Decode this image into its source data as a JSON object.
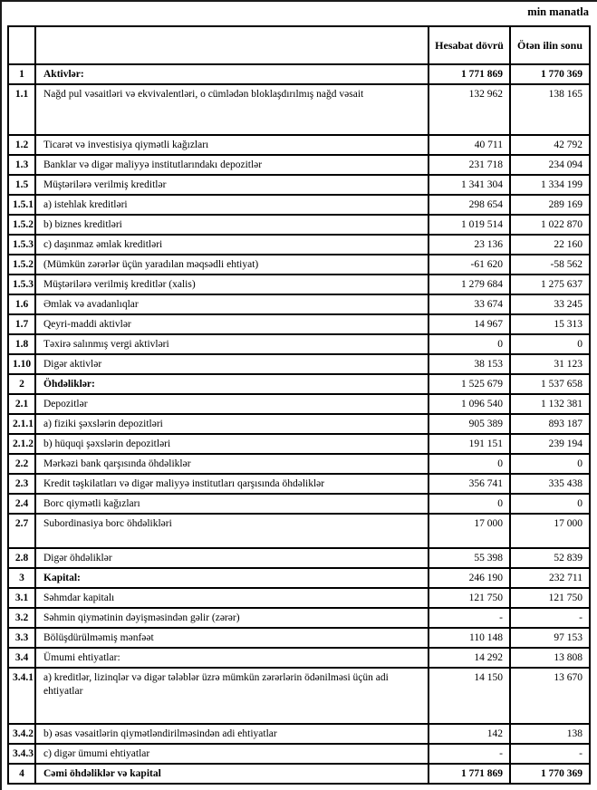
{
  "note": "min manatla",
  "table": {
    "headers": {
      "col_no": "",
      "col_desc": "",
      "col_current": "Hesabat dövrü",
      "col_prior": "Ötən ilin sonu"
    },
    "rows": [
      {
        "no": "1",
        "label": "Aktivlər:",
        "current": "1 771 869",
        "prior": "1 770 369",
        "bold": true,
        "values_bold": true
      },
      {
        "no": "1.1",
        "label": "Nağd pul vəsaitləri və  ekvivalentləri, o cümlədən bloklaşdırılmış nağd vəsait",
        "current": "132 962",
        "prior": "138 165",
        "bold": false,
        "values_bold": false
      },
      {
        "no": "1.2",
        "label": "Ticarət və investisiya qiymətli kağızları",
        "current": "40 711",
        "prior": "42 792",
        "bold": false,
        "values_bold": false
      },
      {
        "no": "1.3",
        "label": "Banklar və digər maliyyə institutlarındakı depozitlər",
        "current": "231 718",
        "prior": "234 094",
        "bold": false,
        "values_bold": false
      },
      {
        "no": "1.5",
        "label": "Müştərilərə verilmiş kreditlər",
        "current": "1 341 304",
        "prior": "1 334 199",
        "bold": false,
        "values_bold": false
      },
      {
        "no": "1.5.1",
        "label": "a) istehlak kreditləri",
        "current": "298 654",
        "prior": "289 169",
        "bold": false,
        "values_bold": false
      },
      {
        "no": "1.5.2",
        "label": "b) biznes kreditləri",
        "current": "1 019 514",
        "prior": "1 022 870",
        "bold": false,
        "values_bold": false
      },
      {
        "no": "1.5.3",
        "label": "c) daşınmaz əmlak kreditləri",
        "current": "23 136",
        "prior": "22 160",
        "bold": false,
        "values_bold": false
      },
      {
        "no": "1.5.2",
        "label": "(Mümkün zərərlər üçün yaradılan məqsədli ehtiyat)",
        "current": "-61 620",
        "prior": "-58 562",
        "bold": false,
        "values_bold": false
      },
      {
        "no": "1.5.3",
        "label": "Müştərilərə verilmiş kreditlər (xalis)",
        "current": "1 279 684",
        "prior": "1 275 637",
        "bold": false,
        "values_bold": false
      },
      {
        "no": "1.6",
        "label": "Əmlak və avadanlıqlar",
        "current": "33 674",
        "prior": "33 245",
        "bold": false,
        "values_bold": false
      },
      {
        "no": "1.7",
        "label": "Qeyri-maddi aktivlər",
        "current": "14 967",
        "prior": "15 313",
        "bold": false,
        "values_bold": false
      },
      {
        "no": "1.8",
        "label": "Təxirə salınmış vergi aktivləri",
        "current": "0",
        "prior": "0",
        "bold": false,
        "values_bold": false
      },
      {
        "no": "1.10",
        "label": "Digər aktivlər",
        "current": "38 153",
        "prior": "31 123",
        "bold": false,
        "values_bold": false
      },
      {
        "no": "2",
        "label": "Öhdəliklər:",
        "current": "1 525 679",
        "prior": "1 537 658",
        "bold": true,
        "values_bold": false
      },
      {
        "no": "2.1",
        "label": "Depozitlər",
        "current": "1 096 540",
        "prior": "1 132 381",
        "bold": false,
        "values_bold": false
      },
      {
        "no": "2.1.1",
        "label": "a) fiziki şəxslərin depozitləri",
        "current": "905 389",
        "prior": "893 187",
        "bold": false,
        "values_bold": false
      },
      {
        "no": "2.1.2",
        "label": "b) hüquqi şəxslərin depozitləri",
        "current": "191 151",
        "prior": "239 194",
        "bold": false,
        "values_bold": false
      },
      {
        "no": "2.2",
        "label": "Mərkəzi bank qarşısında öhdəliklər",
        "current": "0",
        "prior": "0",
        "bold": false,
        "values_bold": false
      },
      {
        "no": "2.3",
        "label": "Kredit təşkilatları və digər maliyyə institutları qarşısında öhdəliklər",
        "current": "356 741",
        "prior": "335 438",
        "bold": false,
        "values_bold": false
      },
      {
        "no": "2.4",
        "label": "Borc qiymətli kağızları",
        "current": "0",
        "prior": "0",
        "bold": false,
        "values_bold": false
      },
      {
        "no": "2.7",
        "label": "Subordinasiya borc öhdəlikləri",
        "current": "17 000",
        "prior": "17 000",
        "bold": false,
        "values_bold": false
      },
      {
        "no": "2.8",
        "label": "Digər öhdəliklər",
        "current": "55 398",
        "prior": "52 839",
        "bold": false,
        "values_bold": false
      },
      {
        "no": "3",
        "label": "Kapital:",
        "current": "246 190",
        "prior": "232 711",
        "bold": true,
        "values_bold": false
      },
      {
        "no": "3.1",
        "label": "Səhmdar kapitalı",
        "current": "121 750",
        "prior": "121 750",
        "bold": false,
        "values_bold": false
      },
      {
        "no": "3.2",
        "label": "Səhmin qiymətinin dəyişməsindən gəlir (zərər)",
        "current": "-",
        "prior": "-",
        "bold": false,
        "values_bold": false
      },
      {
        "no": "3.3",
        "label": "Bölüşdürülməmiş mənfəət",
        "current": "110 148",
        "prior": "97 153",
        "bold": false,
        "values_bold": false
      },
      {
        "no": "3.4",
        "label": "Ümumi ehtiyatlar:",
        "current": "14 292",
        "prior": "13 808",
        "bold": false,
        "values_bold": false
      },
      {
        "no": "3.4.1",
        "label": "a) kreditlər, lizinqlər və digər tələblər üzrə mümkün zərərlərin ödənilməsi üçün adi ehtiyatlar",
        "current": "14 150",
        "prior": "13 670",
        "bold": false,
        "values_bold": false
      },
      {
        "no": "3.4.2",
        "label": "b) əsas vəsaitlərin qiymətləndirilməsindən adi ehtiyatlar",
        "current": "142",
        "prior": "138",
        "bold": false,
        "values_bold": false
      },
      {
        "no": "3.4.3",
        "label": "c) digər ümumi ehtiyatlar",
        "current": "-",
        "prior": "-",
        "bold": false,
        "values_bold": false
      },
      {
        "no": "4",
        "label": "Cəmi öhdəliklər və kapital",
        "current": "1 771 869",
        "prior": "1 770 369",
        "bold": true,
        "values_bold": true
      }
    ]
  }
}
